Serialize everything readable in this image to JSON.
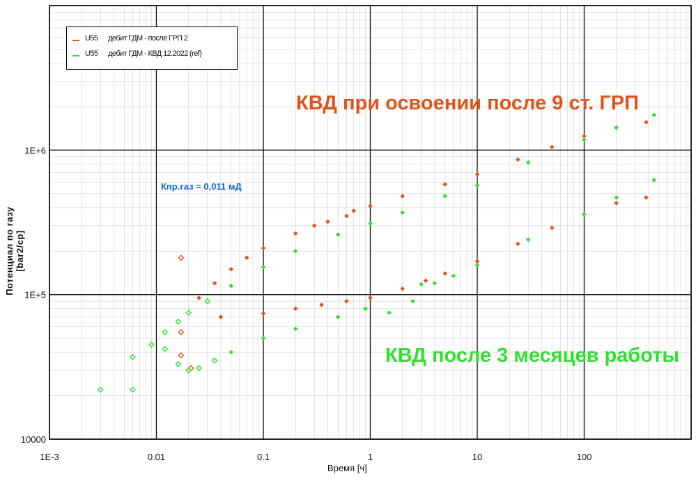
{
  "chart_data": {
    "type": "scatter",
    "title": "",
    "xlabel": "Время  [ч]",
    "ylabel": "Потенциал по газу [bar2/cp]",
    "x_scale": "log",
    "y_scale": "log",
    "xlim": [
      0.001,
      1000
    ],
    "ylim": [
      10000,
      10000000
    ],
    "x_ticks": [
      "1E-3",
      "0.01",
      "0.1",
      "1",
      "10",
      "100"
    ],
    "y_ticks": [
      "10000",
      "1E+5",
      "1E+6"
    ],
    "grid": true,
    "legend_position": "top-left",
    "series": [
      {
        "name": "U55      дебит ГДМ - после ГРП 2",
        "color": "#E2531B",
        "points": [
          [
            0.017,
            55000
          ],
          [
            0.017,
            38000
          ],
          [
            0.021,
            31000
          ],
          [
            0.017,
            180000
          ],
          [
            0.025,
            95000
          ],
          [
            0.035,
            120000
          ],
          [
            0.05,
            150000
          ],
          [
            0.07,
            180000
          ],
          [
            0.1,
            210000
          ],
          [
            0.2,
            265000
          ],
          [
            0.3,
            300000
          ],
          [
            0.4,
            320000
          ],
          [
            0.6,
            350000
          ],
          [
            0.7,
            380000
          ],
          [
            1.0,
            410000
          ],
          [
            2.0,
            480000
          ],
          [
            5.0,
            580000
          ],
          [
            10,
            680000
          ],
          [
            24,
            860000
          ],
          [
            50,
            1050000
          ],
          [
            100,
            1250000
          ],
          [
            200,
            1430000
          ],
          [
            380,
            1560000
          ],
          [
            0.04,
            70000
          ],
          [
            0.1,
            74000
          ],
          [
            0.2,
            80000
          ],
          [
            0.35,
            85000
          ],
          [
            0.6,
            90000
          ],
          [
            1.0,
            95000
          ],
          [
            2.0,
            110000
          ],
          [
            3.3,
            125000
          ],
          [
            5.0,
            140000
          ],
          [
            10,
            170000
          ],
          [
            24,
            225000
          ],
          [
            50,
            290000
          ],
          [
            100,
            360000
          ],
          [
            200,
            430000
          ],
          [
            380,
            470000
          ]
        ]
      },
      {
        "name": "U55      дебит ГДМ - КВД 12.2022 (ref)",
        "color": "#2FE02F",
        "points": [
          [
            0.003,
            22000
          ],
          [
            0.006,
            22000
          ],
          [
            0.006,
            37000
          ],
          [
            0.009,
            45000
          ],
          [
            0.012,
            55000
          ],
          [
            0.016,
            65000
          ],
          [
            0.02,
            75000
          ],
          [
            0.03,
            90000
          ],
          [
            0.05,
            115000
          ],
          [
            0.1,
            155000
          ],
          [
            0.2,
            200000
          ],
          [
            0.5,
            260000
          ],
          [
            1.0,
            310000
          ],
          [
            2.0,
            370000
          ],
          [
            5.0,
            480000
          ],
          [
            10,
            570000
          ],
          [
            30,
            820000
          ],
          [
            100,
            1180000
          ],
          [
            200,
            1430000
          ],
          [
            450,
            1750000
          ],
          [
            0.012,
            42000
          ],
          [
            0.016,
            33000
          ],
          [
            0.02,
            30000
          ],
          [
            0.025,
            31000
          ],
          [
            0.035,
            35000
          ],
          [
            0.05,
            40000
          ],
          [
            0.1,
            50000
          ],
          [
            0.2,
            58000
          ],
          [
            0.5,
            70000
          ],
          [
            0.9,
            80000
          ],
          [
            1.5,
            75000
          ],
          [
            2.5,
            90000
          ],
          [
            3.0,
            118000
          ],
          [
            4.0,
            120000
          ],
          [
            6.0,
            135000
          ],
          [
            10,
            160000
          ],
          [
            30,
            240000
          ],
          [
            100,
            360000
          ],
          [
            200,
            470000
          ],
          [
            450,
            620000
          ]
        ]
      }
    ],
    "annotations": [
      "КВД при освоении после 9 ст. ГРП",
      "КВД после 3 месяцев работы",
      "Кпр.газ = 0,011 мД"
    ]
  },
  "legend": {
    "item1": "U55      дебит ГДМ - после ГРП 2",
    "item2": "U55      дебит ГДМ - КВД 12.2022 (ref)"
  },
  "annotations": {
    "orange": "КВД при освоении после 9 ст. ГРП",
    "green": "КВД после 3 месяцев работы",
    "perm": "Кпр.газ = 0,011 мД"
  }
}
